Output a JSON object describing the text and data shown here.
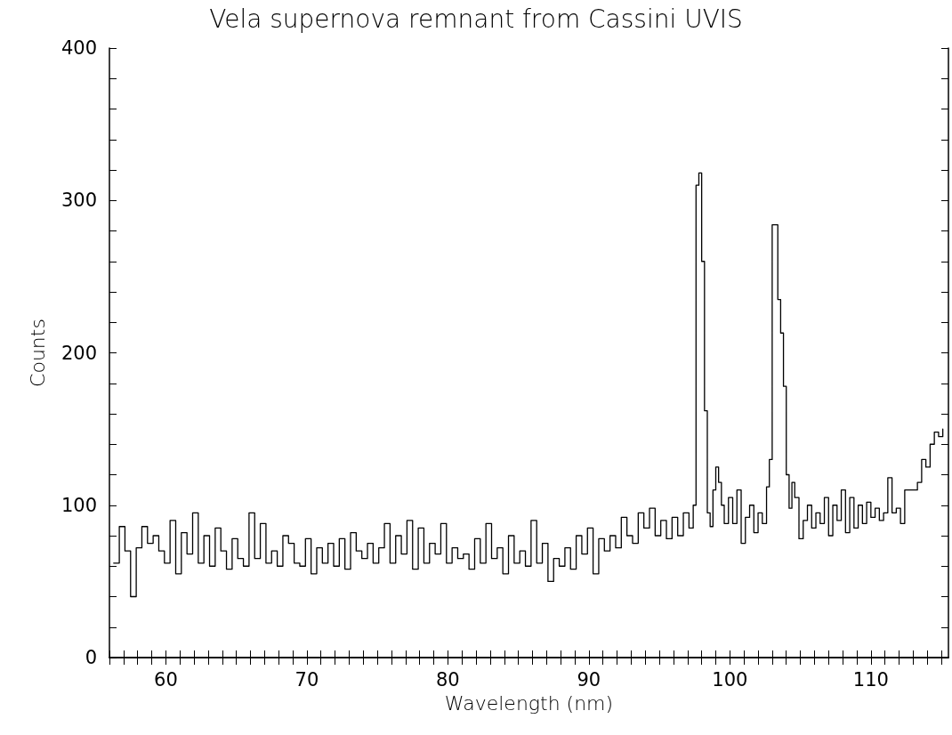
{
  "chart_data": {
    "type": "step",
    "title": "Vela supernova remnant from Cassini UVIS",
    "xlabel": "Wavelength (nm)",
    "ylabel": "Counts",
    "xlim": [
      56,
      115.5
    ],
    "ylim": [
      0,
      400
    ],
    "xticks": [
      {
        "value": 56,
        "label": null
      },
      {
        "value": 57,
        "label": null
      },
      {
        "value": 58,
        "label": null
      },
      {
        "value": 59,
        "label": null
      },
      60,
      {
        "value": 61,
        "label": null
      },
      {
        "value": 62,
        "label": null
      },
      {
        "value": 63,
        "label": null
      },
      {
        "value": 64,
        "label": null
      },
      {
        "value": 65,
        "label": null
      },
      {
        "value": 66,
        "label": null
      },
      {
        "value": 67,
        "label": null
      },
      {
        "value": 68,
        "label": null
      },
      {
        "value": 69,
        "label": null
      },
      70,
      {
        "value": 71,
        "label": null
      },
      {
        "value": 72,
        "label": null
      },
      {
        "value": 73,
        "label": null
      },
      {
        "value": 74,
        "label": null
      },
      {
        "value": 75,
        "label": null
      },
      {
        "value": 76,
        "label": null
      },
      {
        "value": 77,
        "label": null
      },
      {
        "value": 78,
        "label": null
      },
      {
        "value": 79,
        "label": null
      },
      80,
      {
        "value": 81,
        "label": null
      },
      {
        "value": 82,
        "label": null
      },
      {
        "value": 83,
        "label": null
      },
      {
        "value": 84,
        "label": null
      },
      {
        "value": 85,
        "label": null
      },
      {
        "value": 86,
        "label": null
      },
      {
        "value": 87,
        "label": null
      },
      {
        "value": 88,
        "label": null
      },
      {
        "value": 89,
        "label": null
      },
      90,
      {
        "value": 91,
        "label": null
      },
      {
        "value": 92,
        "label": null
      },
      {
        "value": 93,
        "label": null
      },
      {
        "value": 94,
        "label": null
      },
      {
        "value": 95,
        "label": null
      },
      {
        "value": 96,
        "label": null
      },
      {
        "value": 97,
        "label": null
      },
      {
        "value": 98,
        "label": null
      },
      {
        "value": 99,
        "label": null
      },
      100,
      {
        "value": 101,
        "label": null
      },
      {
        "value": 102,
        "label": null
      },
      {
        "value": 103,
        "label": null
      },
      {
        "value": 104,
        "label": null
      },
      {
        "value": 105,
        "label": null
      },
      {
        "value": 106,
        "label": null
      },
      {
        "value": 107,
        "label": null
      },
      {
        "value": 108,
        "label": null
      },
      {
        "value": 109,
        "label": null
      },
      110,
      {
        "value": 111,
        "label": null
      },
      {
        "value": 112,
        "label": null
      },
      {
        "value": 113,
        "label": null
      },
      {
        "value": 114,
        "label": null
      },
      {
        "value": 115,
        "label": null
      }
    ],
    "yticks": [
      0,
      {
        "value": 20,
        "label": null
      },
      {
        "value": 40,
        "label": null
      },
      {
        "value": 60,
        "label": null
      },
      {
        "value": 80,
        "label": null
      },
      100,
      {
        "value": 120,
        "label": null
      },
      {
        "value": 140,
        "label": null
      },
      {
        "value": 160,
        "label": null
      },
      {
        "value": 180,
        "label": null
      },
      200,
      {
        "value": 220,
        "label": null
      },
      {
        "value": 240,
        "label": null
      },
      {
        "value": 260,
        "label": null
      },
      {
        "value": 280,
        "label": null
      },
      300,
      {
        "value": 320,
        "label": null
      },
      {
        "value": 340,
        "label": null
      },
      {
        "value": 360,
        "label": null
      },
      {
        "value": 380,
        "label": null
      },
      400
    ],
    "grid": false,
    "marker": "none",
    "line_style": "solid",
    "series": [
      {
        "color": "#000000",
        "x": [
          56.3,
          56.7,
          57.1,
          57.5,
          57.9,
          58.3,
          58.7,
          59.1,
          59.5,
          59.9,
          60.3,
          60.7,
          61.1,
          61.5,
          61.9,
          62.3,
          62.7,
          63.1,
          63.5,
          63.9,
          64.3,
          64.7,
          65.1,
          65.5,
          65.9,
          66.3,
          66.7,
          67.1,
          67.5,
          67.9,
          68.3,
          68.7,
          69.1,
          69.5,
          69.9,
          70.3,
          70.7,
          71.1,
          71.5,
          71.9,
          72.3,
          72.7,
          73.1,
          73.5,
          73.9,
          74.3,
          74.7,
          75.1,
          75.5,
          75.9,
          76.3,
          76.7,
          77.1,
          77.5,
          77.9,
          78.3,
          78.7,
          79.1,
          79.5,
          79.9,
          80.3,
          80.7,
          81.1,
          81.5,
          81.9,
          82.3,
          82.7,
          83.1,
          83.5,
          83.9,
          84.3,
          84.7,
          85.1,
          85.5,
          85.9,
          86.3,
          86.7,
          87.1,
          87.5,
          87.9,
          88.3,
          88.7,
          89.1,
          89.5,
          89.9,
          90.3,
          90.7,
          91.1,
          91.5,
          91.9,
          92.3,
          92.7,
          93.1,
          93.5,
          93.9,
          94.3,
          94.7,
          95.1,
          95.5,
          95.9,
          96.3,
          96.7,
          97.1,
          97.4,
          97.6,
          97.8,
          98.0,
          98.2,
          98.4,
          98.6,
          98.8,
          99.0,
          99.2,
          99.4,
          99.6,
          99.9,
          100.2,
          100.5,
          100.8,
          101.1,
          101.4,
          101.7,
          102.0,
          102.3,
          102.6,
          102.8,
          103.0,
          103.2,
          103.4,
          103.6,
          103.8,
          104.0,
          104.2,
          104.4,
          104.6,
          104.9,
          105.2,
          105.5,
          105.8,
          106.1,
          106.4,
          106.7,
          107.0,
          107.3,
          107.6,
          107.9,
          108.2,
          108.5,
          108.8,
          109.1,
          109.4,
          109.7,
          110.0,
          110.3,
          110.6,
          110.9,
          111.2,
          111.5,
          111.8,
          112.1,
          112.4,
          112.7,
          113.0,
          113.3,
          113.6,
          113.9,
          114.2,
          114.5,
          114.8,
          115.1
        ],
        "values": [
          62,
          86,
          70,
          40,
          72,
          86,
          75,
          80,
          70,
          62,
          90,
          55,
          82,
          68,
          95,
          62,
          80,
          60,
          85,
          70,
          58,
          78,
          65,
          60,
          95,
          65,
          88,
          62,
          70,
          60,
          80,
          75,
          62,
          60,
          78,
          55,
          72,
          62,
          75,
          60,
          78,
          58,
          82,
          70,
          65,
          75,
          62,
          72,
          88,
          62,
          80,
          68,
          90,
          58,
          85,
          62,
          75,
          68,
          88,
          62,
          72,
          65,
          68,
          58,
          78,
          62,
          88,
          65,
          72,
          55,
          80,
          62,
          70,
          60,
          90,
          62,
          75,
          50,
          65,
          60,
          72,
          58,
          80,
          68,
          85,
          55,
          78,
          70,
          80,
          72,
          92,
          80,
          75,
          95,
          85,
          98,
          80,
          90,
          78,
          92,
          80,
          95,
          85,
          100,
          310,
          318,
          260,
          162,
          95,
          86,
          110,
          125,
          115,
          100,
          88,
          105,
          88,
          110,
          75,
          92,
          100,
          82,
          95,
          88,
          112,
          130,
          284,
          284,
          235,
          213,
          178,
          120,
          98,
          115,
          105,
          78,
          90,
          100,
          85,
          95,
          88,
          105,
          80,
          100,
          90,
          110,
          82,
          105,
          85,
          100,
          88,
          102,
          92,
          98,
          90,
          95,
          118,
          95,
          98,
          88,
          110,
          110,
          110,
          115,
          130,
          125,
          140,
          148,
          145,
          150
        ]
      }
    ]
  }
}
